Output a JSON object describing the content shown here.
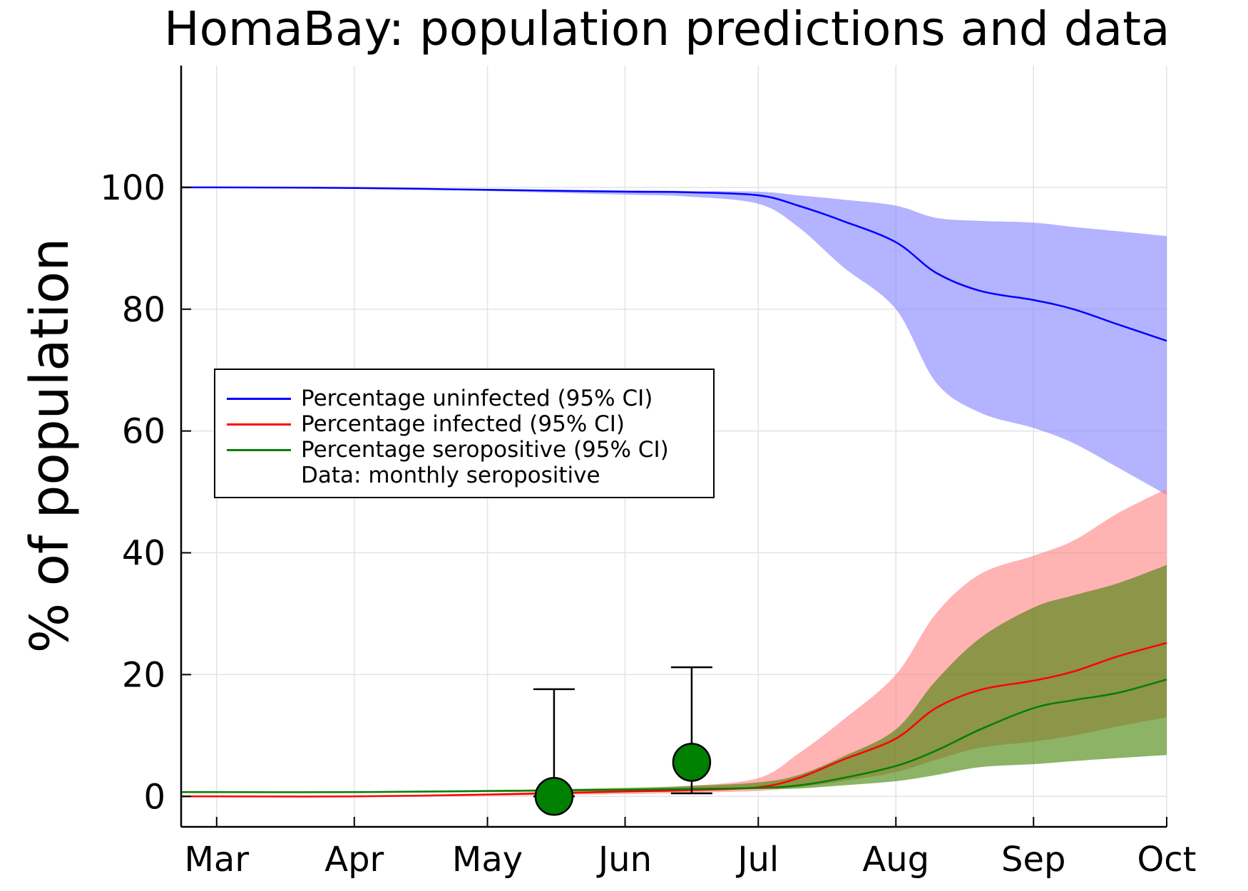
{
  "chart_data": {
    "type": "line",
    "title": "HomaBay: population predictions and data",
    "xlabel": "",
    "ylabel": "% of population",
    "x_ticks": [
      "Mar",
      "Apr",
      "May",
      "Jun",
      "Jul",
      "Aug",
      "Sep",
      "Oct"
    ],
    "y_ticks": [
      0,
      20,
      40,
      60,
      80,
      100
    ],
    "ylim": [
      -5,
      120
    ],
    "xlim": [
      "2020-02-22",
      "2020-10-01"
    ],
    "grid": true,
    "legend_position": "center-left",
    "series": [
      {
        "name": "Percentage uninfected (95% CI)",
        "color": "#0000ff",
        "band_color": "#8080ff",
        "x": [
          "2020-02-22",
          "2020-03-01",
          "2020-04-01",
          "2020-05-01",
          "2020-06-01",
          "2020-06-15",
          "2020-07-01",
          "2020-07-10",
          "2020-07-20",
          "2020-08-01",
          "2020-08-10",
          "2020-08-20",
          "2020-09-01",
          "2020-09-10",
          "2020-09-20",
          "2020-10-01"
        ],
        "values": [
          100,
          100,
          99.9,
          99.6,
          99.3,
          99.2,
          98.7,
          97,
          94.5,
          91,
          86,
          83,
          81.5,
          80,
          77.5,
          74.8
        ],
        "lower": [
          100,
          100,
          99.9,
          99.4,
          98.8,
          98.5,
          97.3,
          93.5,
          87,
          80,
          68,
          63,
          60.5,
          58,
          54,
          49.5
        ],
        "upper": [
          100,
          100,
          99.9,
          99.7,
          99.5,
          99.4,
          99.3,
          98.7,
          98,
          97,
          95,
          94.5,
          94.2,
          93.5,
          92.8,
          92
        ]
      },
      {
        "name": "Percentage infected (95% CI)",
        "color": "#ff0000",
        "band_color": "#ff8080",
        "x": [
          "2020-02-22",
          "2020-03-01",
          "2020-04-01",
          "2020-05-01",
          "2020-06-01",
          "2020-06-15",
          "2020-07-01",
          "2020-07-10",
          "2020-07-20",
          "2020-08-01",
          "2020-08-10",
          "2020-08-20",
          "2020-09-01",
          "2020-09-10",
          "2020-09-20",
          "2020-10-01"
        ],
        "values": [
          0,
          0,
          0,
          0.3,
          0.8,
          1.0,
          1.5,
          3.0,
          6.0,
          9.5,
          14.5,
          17.5,
          19,
          20.5,
          23,
          25.2
        ],
        "lower": [
          0,
          0,
          0,
          0.1,
          0.4,
          0.6,
          0.9,
          1.5,
          2.5,
          4,
          6,
          8,
          9,
          10,
          11.5,
          13
        ],
        "upper": [
          0,
          0,
          0.1,
          0.5,
          1.2,
          1.7,
          3,
          7,
          12.5,
          20,
          30,
          36.5,
          39.5,
          42,
          46.5,
          50.5
        ]
      },
      {
        "name": "Percentage seropositive (95% CI)",
        "color": "#008000",
        "band_color": "#408000",
        "x": [
          "2020-02-22",
          "2020-03-01",
          "2020-04-01",
          "2020-05-01",
          "2020-06-01",
          "2020-06-15",
          "2020-07-01",
          "2020-07-10",
          "2020-07-20",
          "2020-08-01",
          "2020-08-10",
          "2020-08-20",
          "2020-09-01",
          "2020-09-10",
          "2020-09-20",
          "2020-10-01"
        ],
        "values": [
          0.7,
          0.7,
          0.7,
          0.9,
          1.1,
          1.2,
          1.4,
          1.8,
          3.0,
          5.0,
          7.5,
          11,
          14.5,
          15.8,
          17,
          19.2
        ],
        "lower": [
          0.6,
          0.6,
          0.6,
          0.7,
          0.9,
          1.0,
          1.2,
          1.3,
          1.8,
          2.5,
          3.5,
          4.8,
          5.3,
          5.8,
          6.3,
          6.8
        ],
        "upper": [
          0.8,
          0.8,
          0.8,
          1.0,
          1.4,
          1.7,
          2.3,
          3.5,
          6.5,
          11,
          19,
          26,
          31,
          33,
          35,
          38
        ]
      }
    ],
    "data_points": {
      "name": "Data: monthly seropositive",
      "color": "#008000",
      "points": [
        {
          "x": "2020-05-16",
          "y": 0,
          "lower": 0,
          "upper": 17.6
        },
        {
          "x": "2020-06-16",
          "y": 5.6,
          "lower": 0.5,
          "upper": 21.2
        }
      ]
    }
  }
}
